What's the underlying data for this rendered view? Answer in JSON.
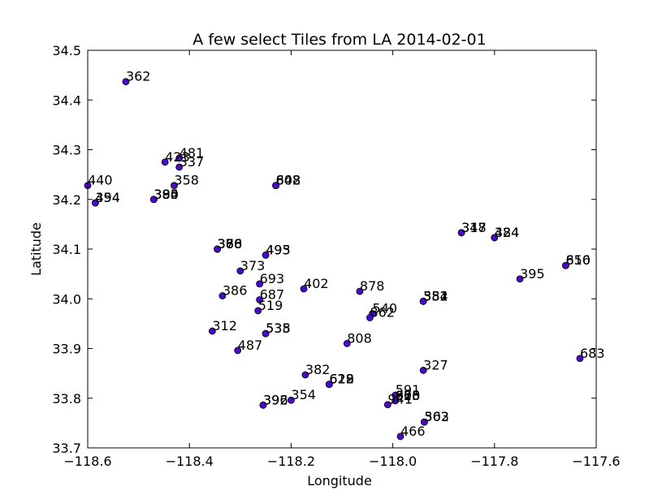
{
  "chart_data": {
    "type": "scatter",
    "title": "A few select Tiles from LA 2014-02-01",
    "xlabel": "Longitude",
    "ylabel": "Latitude",
    "xlim": [
      -118.6,
      -117.6
    ],
    "ylim": [
      33.7,
      34.5
    ],
    "xticks": [
      "-118.6",
      "-118.4",
      "-118.2",
      "-118.0",
      "-117.8",
      "-117.6"
    ],
    "yticks": [
      "33.7",
      "33.8",
      "33.9",
      "34.0",
      "34.1",
      "34.2",
      "34.3",
      "34.4",
      "34.5"
    ],
    "grid": false,
    "marker_color": "#4b0acc",
    "marker_edge": "#000000",
    "points": [
      {
        "x": -118.525,
        "y": 34.437,
        "label": "362"
      },
      {
        "x": -118.42,
        "y": 34.283,
        "label": "481"
      },
      {
        "x": -118.448,
        "y": 34.275,
        "label": "423"
      },
      {
        "x": -118.42,
        "y": 34.265,
        "label": "337"
      },
      {
        "x": -118.43,
        "y": 34.228,
        "label": "358"
      },
      {
        "x": -118.6,
        "y": 34.228,
        "label": "440"
      },
      {
        "x": -118.585,
        "y": 34.193,
        "label": "454"
      },
      {
        "x": -118.585,
        "y": 34.193,
        "label": "394"
      },
      {
        "x": -118.47,
        "y": 34.2,
        "label": "380"
      },
      {
        "x": -118.47,
        "y": 34.2,
        "label": "395"
      },
      {
        "x": -118.47,
        "y": 34.2,
        "label": "384"
      },
      {
        "x": -118.23,
        "y": 34.228,
        "label": "848"
      },
      {
        "x": -118.23,
        "y": 34.228,
        "label": "602"
      },
      {
        "x": -118.23,
        "y": 34.228,
        "label": "608"
      },
      {
        "x": -117.865,
        "y": 34.133,
        "label": "347"
      },
      {
        "x": -117.865,
        "y": 34.133,
        "label": "318"
      },
      {
        "x": -117.8,
        "y": 34.123,
        "label": "384"
      },
      {
        "x": -117.8,
        "y": 34.123,
        "label": "424"
      },
      {
        "x": -117.66,
        "y": 34.067,
        "label": "816"
      },
      {
        "x": -117.66,
        "y": 34.067,
        "label": "650"
      },
      {
        "x": -117.75,
        "y": 34.04,
        "label": "395"
      },
      {
        "x": -118.345,
        "y": 34.1,
        "label": "376"
      },
      {
        "x": -118.345,
        "y": 34.1,
        "label": "380"
      },
      {
        "x": -118.345,
        "y": 34.1,
        "label": "388"
      },
      {
        "x": -118.345,
        "y": 34.1,
        "label": "366"
      },
      {
        "x": -118.25,
        "y": 34.088,
        "label": "495"
      },
      {
        "x": -118.25,
        "y": 34.088,
        "label": "493"
      },
      {
        "x": -118.3,
        "y": 34.056,
        "label": "373"
      },
      {
        "x": -118.262,
        "y": 34.03,
        "label": "693"
      },
      {
        "x": -118.175,
        "y": 34.02,
        "label": "402"
      },
      {
        "x": -118.065,
        "y": 34.015,
        "label": "878"
      },
      {
        "x": -118.335,
        "y": 34.006,
        "label": "386"
      },
      {
        "x": -118.262,
        "y": 33.998,
        "label": "687"
      },
      {
        "x": -117.94,
        "y": 33.995,
        "label": "552"
      },
      {
        "x": -117.94,
        "y": 33.995,
        "label": "384"
      },
      {
        "x": -117.94,
        "y": 33.995,
        "label": "381"
      },
      {
        "x": -118.265,
        "y": 33.976,
        "label": "519"
      },
      {
        "x": -118.04,
        "y": 33.97,
        "label": "540"
      },
      {
        "x": -118.045,
        "y": 33.962,
        "label": "862"
      },
      {
        "x": -118.355,
        "y": 33.935,
        "label": "312"
      },
      {
        "x": -118.25,
        "y": 33.93,
        "label": "538"
      },
      {
        "x": -118.25,
        "y": 33.93,
        "label": "535"
      },
      {
        "x": -118.09,
        "y": 33.91,
        "label": "808"
      },
      {
        "x": -118.305,
        "y": 33.896,
        "label": "487"
      },
      {
        "x": -117.632,
        "y": 33.88,
        "label": "683"
      },
      {
        "x": -117.94,
        "y": 33.856,
        "label": "327"
      },
      {
        "x": -118.172,
        "y": 33.847,
        "label": "382"
      },
      {
        "x": -118.125,
        "y": 33.828,
        "label": "628"
      },
      {
        "x": -118.125,
        "y": 33.828,
        "label": "612"
      },
      {
        "x": -118.125,
        "y": 33.828,
        "label": "629"
      },
      {
        "x": -117.995,
        "y": 33.806,
        "label": "591"
      },
      {
        "x": -117.995,
        "y": 33.795,
        "label": "900"
      },
      {
        "x": -117.995,
        "y": 33.795,
        "label": "875"
      },
      {
        "x": -117.995,
        "y": 33.795,
        "label": "628"
      },
      {
        "x": -118.01,
        "y": 33.787,
        "label": "941"
      },
      {
        "x": -118.2,
        "y": 33.796,
        "label": "354"
      },
      {
        "x": -118.255,
        "y": 33.786,
        "label": "396"
      },
      {
        "x": -118.255,
        "y": 33.786,
        "label": "392"
      },
      {
        "x": -117.938,
        "y": 33.752,
        "label": "503"
      },
      {
        "x": -117.938,
        "y": 33.752,
        "label": "362"
      },
      {
        "x": -117.985,
        "y": 33.723,
        "label": "466"
      }
    ]
  }
}
